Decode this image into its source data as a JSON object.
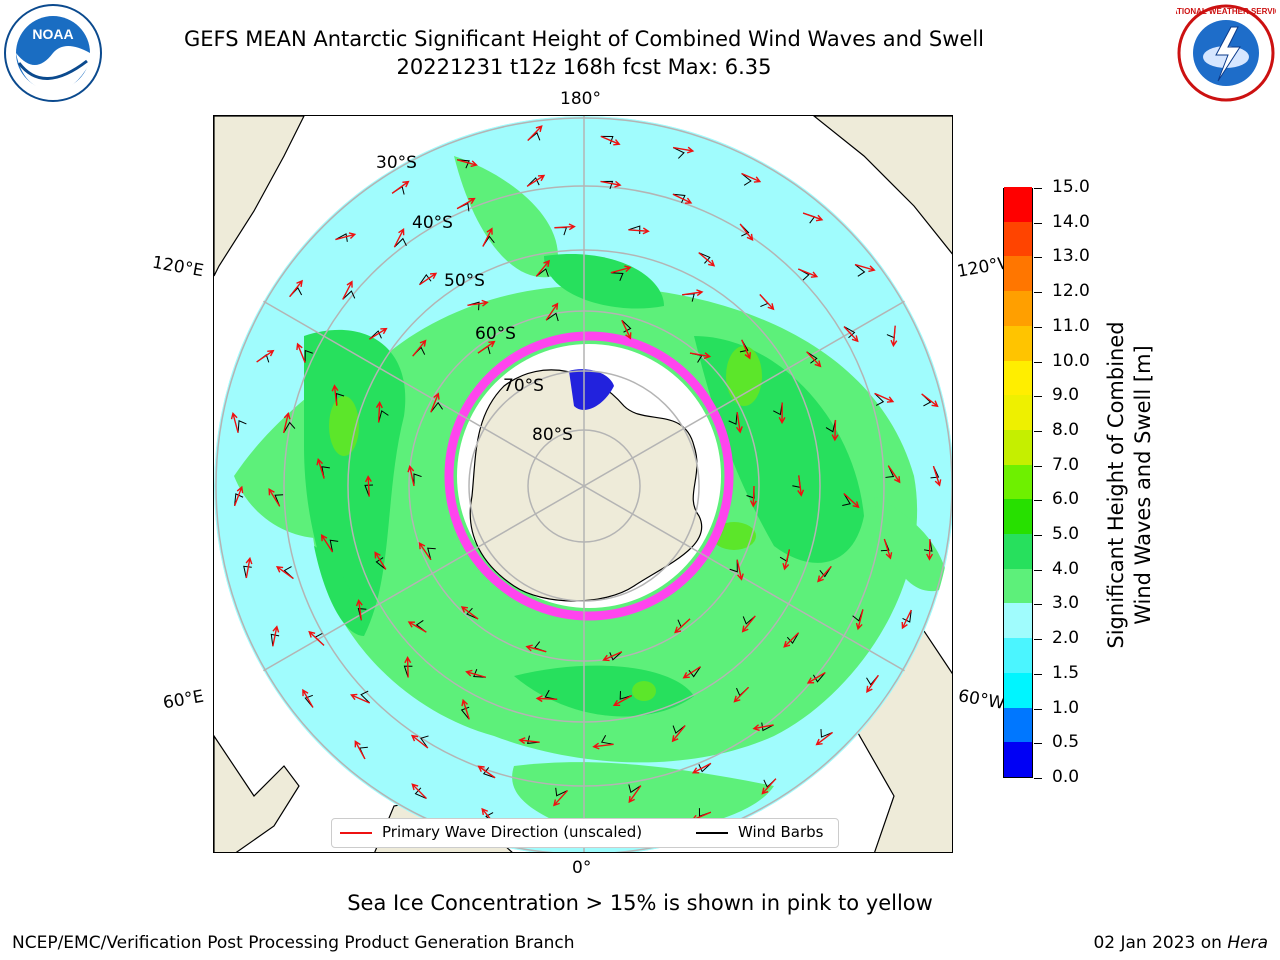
{
  "header": {
    "title_line1": "GEFS MEAN Antarctic Significant Height of Combined Wind Waves and Swell",
    "title_line2": "20221231 t12z 168h fcst   Max: 6.35",
    "left_logo": "noaa-logo",
    "right_logo": "national-weather-service-logo",
    "left_logo_text": "NOAA",
    "right_logo_text": "NATIONAL WEATHER SERVICE"
  },
  "map": {
    "projection": "south-polar-stereographic",
    "longitude_labels": {
      "top": "180°",
      "bottom": "0°",
      "left_upper": "120°E",
      "left_lower": "60°E",
      "right_upper": "120°W",
      "right_lower": "60°W"
    },
    "latitude_labels": [
      "30°S",
      "40°S",
      "50°S",
      "60°S",
      "70°S",
      "80°S"
    ],
    "colors": {
      "land": "#eeebd9",
      "ocean_low": "#a0fcfd",
      "swell_3_4": "#5df07a",
      "swell_4_5": "#27e05d",
      "swell_5_6": "#5ce62a",
      "grid": "#b4b4b4",
      "wave_arrow": "#ee1111",
      "wind_barb": "#000000",
      "sea_ice": "#ff44ee"
    }
  },
  "legend": {
    "primary_wave_label": "Primary Wave Direction (unscaled)",
    "wind_barbs_label": "Wind Barbs"
  },
  "colorbar": {
    "title_line1": "Significant Height of Combined",
    "title_line2": "Wind Waves and Swell [m]",
    "ticks": [
      "0.0",
      "0.5",
      "1.0",
      "1.5",
      "2.0",
      "3.0",
      "4.0",
      "5.0",
      "6.0",
      "7.0",
      "8.0",
      "9.0",
      "10.0",
      "11.0",
      "12.0",
      "13.0",
      "14.0",
      "15.0"
    ],
    "colors": [
      "#0000f5",
      "#0077ff",
      "#00f5ff",
      "#4bf5ff",
      "#a0fcfd",
      "#5df07a",
      "#27e05d",
      "#27e000",
      "#6ef000",
      "#c5ef00",
      "#eef000",
      "#ffee00",
      "#ffc400",
      "#ff9f00",
      "#ff7600",
      "#ff4400",
      "#ff0000"
    ]
  },
  "footer": {
    "sea_ice_note": "Sea Ice Concentration > 15% is shown in pink to yellow",
    "credit": "NCEP/EMC/Verification Post Processing Product Generation Branch",
    "date_prefix": "02 Jan 2023 on ",
    "machine": "Hera"
  }
}
